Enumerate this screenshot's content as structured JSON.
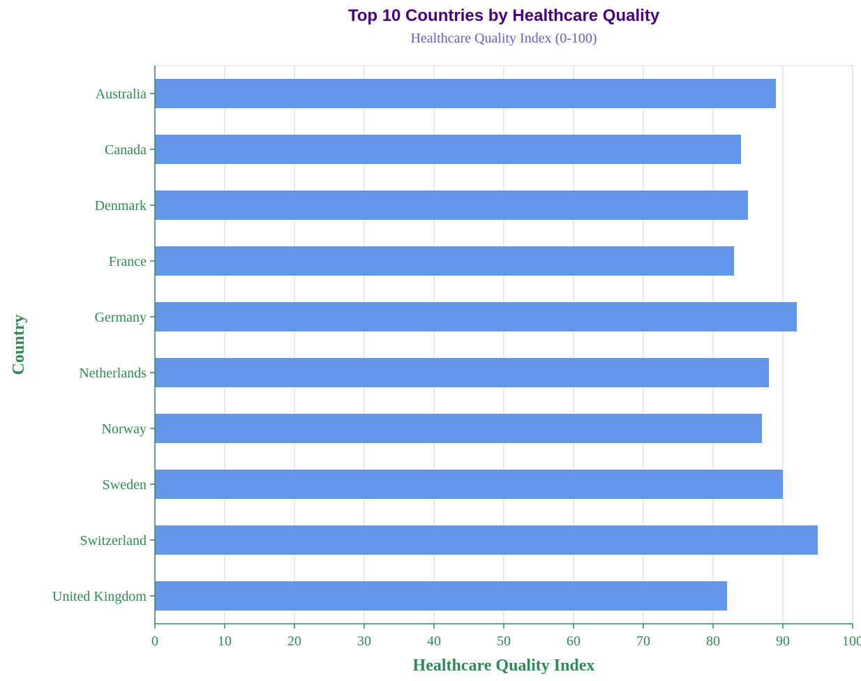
{
  "chart_data": {
    "type": "bar",
    "orientation": "horizontal",
    "title": "Top 10 Countries by Healthcare Quality",
    "subtitle": "Healthcare Quality Index (0-100)",
    "xlabel": "Healthcare Quality Index",
    "ylabel": "Country",
    "xlim": [
      0,
      100
    ],
    "x_ticks": [
      0,
      10,
      20,
      30,
      40,
      50,
      60,
      70,
      80,
      90,
      100
    ],
    "grid": true,
    "categories": [
      "Australia",
      "Canada",
      "Denmark",
      "France",
      "Germany",
      "Netherlands",
      "Norway",
      "Sweden",
      "Switzerland",
      "United Kingdom"
    ],
    "values": [
      89,
      84,
      85,
      83,
      92,
      88,
      87,
      90,
      95,
      82
    ]
  },
  "colors": {
    "bar": "#6495ED",
    "title": "#4B0082",
    "subtitle": "#6A5ACD",
    "axis": "#2E8B57",
    "grid": "#D9D9D9"
  }
}
